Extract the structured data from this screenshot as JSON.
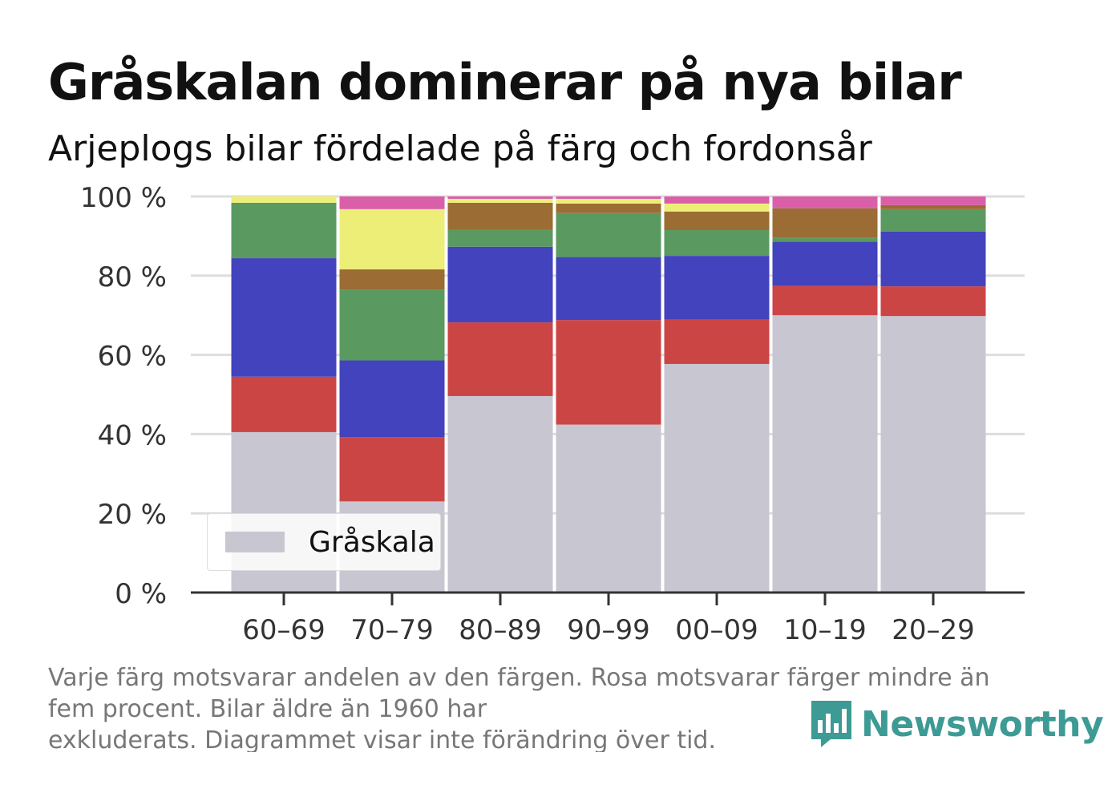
{
  "title": "Gråskalan dominerar på nya bilar",
  "subtitle": "Arjeplogs bilar fördelade på färg och fordonsår",
  "footnote": {
    "line1": "Varje färg motsvarar andelen av den färgen. Rosa motsvarar färger mindre än",
    "line2": "fem procent. Bilar äldre än 1960 har",
    "line3": "exkluderats. Diagrammet visar inte förändring över tid."
  },
  "brand": {
    "name": "Newsworthy",
    "logo_icon": "newsworthy-bar-chart-icon",
    "color": "#3d9a94"
  },
  "legend": {
    "label": "Gråskala",
    "color": "#c8c6d1"
  },
  "chart_data": {
    "type": "bar",
    "stacked": true,
    "categories": [
      "60–69",
      "70–79",
      "80–89",
      "90–99",
      "00–09",
      "10–19",
      "20–29"
    ],
    "y_ticks": [
      "0 %",
      "20 %",
      "40 %",
      "60 %",
      "80 %",
      "100 %"
    ],
    "ylim": [
      0,
      100
    ],
    "grid": true,
    "legend_position": "bottom-left",
    "series": [
      {
        "name": "Gråskala",
        "color": "#c8c6d1",
        "values": [
          40.5,
          23,
          49.6,
          42.4,
          57.7,
          70,
          69.8
        ]
      },
      {
        "color": "#cc4545",
        "values": [
          14,
          16.2,
          18.6,
          26.4,
          11.2,
          7.4,
          7.5
        ]
      },
      {
        "color": "#4343bd",
        "values": [
          29.9,
          19.4,
          19.1,
          15.9,
          16.1,
          11.2,
          13.8
        ]
      },
      {
        "color": "#5a9a60",
        "values": [
          14,
          17.9,
          4.4,
          11.1,
          6.5,
          1,
          5.7
        ]
      },
      {
        "color": "#9b6c33",
        "values": [
          0,
          5.1,
          6.7,
          2.4,
          4.7,
          7.4,
          1
        ]
      },
      {
        "color": "#ecee78",
        "values": [
          1.6,
          15.2,
          1,
          1.2,
          2,
          0,
          0
        ]
      },
      {
        "color": "#da5fa9",
        "values": [
          0,
          3.2,
          0.6,
          0.6,
          1.8,
          3,
          2.2
        ]
      }
    ]
  }
}
